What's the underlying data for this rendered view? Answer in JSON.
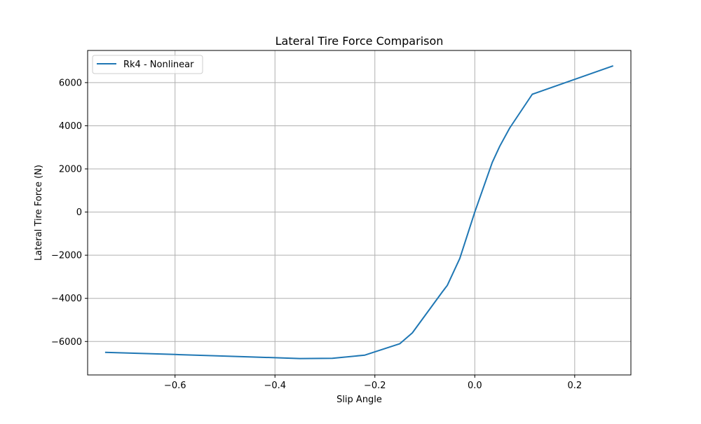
{
  "chart_data": {
    "type": "line",
    "title": "Lateral Tire Force Comparison",
    "xlabel": "Slip Angle",
    "ylabel": "Lateral Tire Force (N)",
    "xlim": [
      -0.775,
      0.3125
    ],
    "ylim": [
      -7550,
      7490
    ],
    "xticks": [
      -0.6,
      -0.4,
      -0.2,
      0.0,
      0.2
    ],
    "xtick_labels": [
      "−0.6",
      "−0.4",
      "−0.2",
      "0.0",
      "0.2"
    ],
    "yticks": [
      -6000,
      -4000,
      -2000,
      0,
      2000,
      4000,
      6000
    ],
    "ytick_labels": [
      "−6000",
      "−4000",
      "−2000",
      "0",
      "2000",
      "4000",
      "6000"
    ],
    "grid": true,
    "legend_position": "top-left",
    "series": [
      {
        "name": "Rk4 - Nonlinear",
        "color": "#1f77b4",
        "x": [
          -0.74,
          -0.6,
          -0.4,
          -0.35,
          -0.285,
          -0.22,
          -0.15,
          -0.125,
          -0.065,
          -0.055,
          -0.03,
          0.0,
          0.035,
          0.05,
          0.07,
          0.115,
          0.277
        ],
        "y": [
          -6500,
          -6600,
          -6750,
          -6790,
          -6780,
          -6630,
          -6100,
          -5600,
          -3700,
          -3400,
          -2150,
          0,
          2300,
          3050,
          3900,
          5460,
          6780
        ]
      }
    ]
  }
}
